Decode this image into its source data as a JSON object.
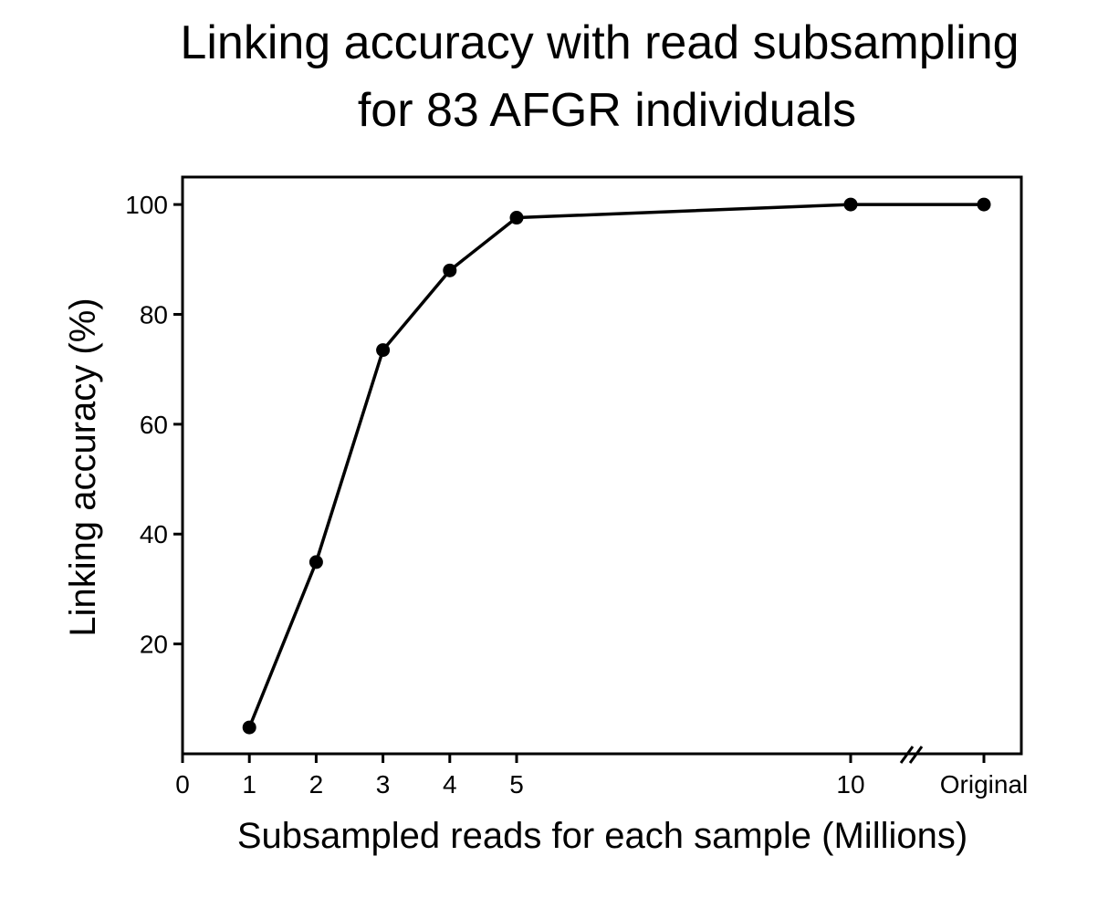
{
  "chart_data": {
    "type": "line",
    "title": [
      "Linking accuracy with read subsampling",
      "for 83 AFGR individuals"
    ],
    "xlabel": "Subsampled reads for each sample (Millions)",
    "ylabel": "Linking accuracy (%)",
    "x_ticks": [
      "0",
      "1",
      "2",
      "3",
      "4",
      "5",
      "10",
      "Original"
    ],
    "y_ticks": [
      20,
      40,
      60,
      80,
      100
    ],
    "ylim": [
      0,
      105
    ],
    "grid": false,
    "axis_break": "between 10 and Original",
    "series": [
      {
        "x": [
          "1",
          "2",
          "3",
          "4",
          "5",
          "10",
          "Original"
        ],
        "y": [
          4.8,
          34.9,
          73.5,
          88.0,
          97.6,
          100,
          100
        ]
      }
    ],
    "colors": {
      "line": "#000000",
      "marker": "#000000"
    }
  }
}
